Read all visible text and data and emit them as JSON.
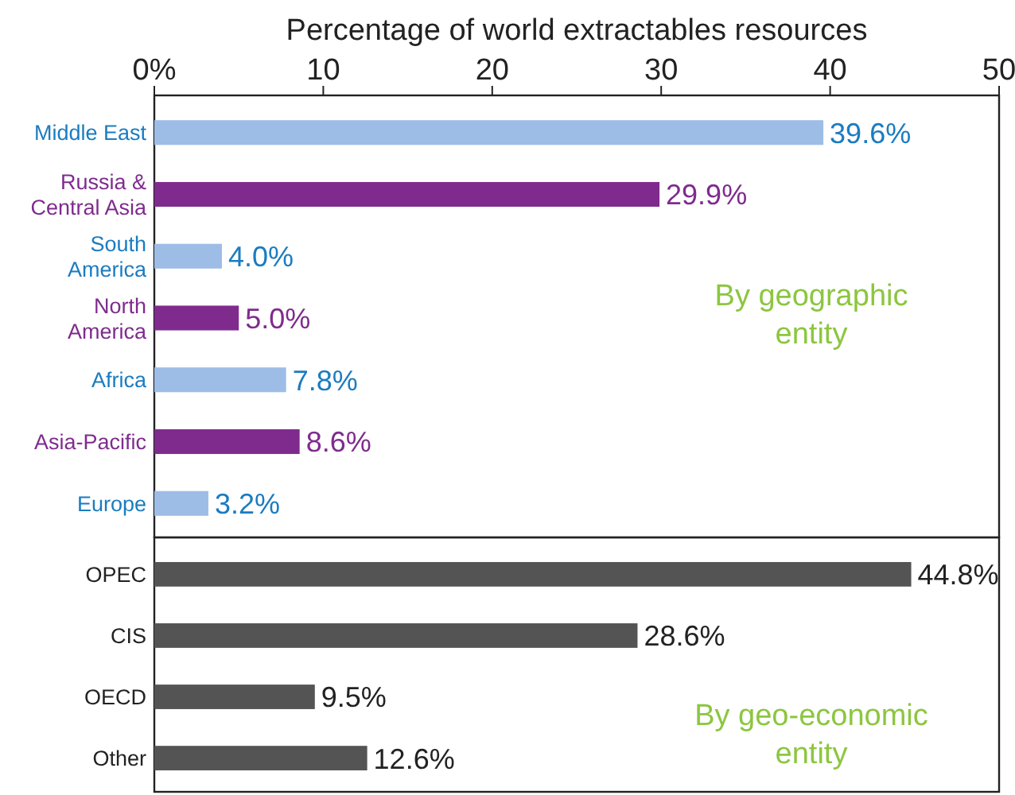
{
  "chart_data": [
    {
      "type": "bar",
      "orientation": "horizontal",
      "xlabel": "Percentage of world extractables resources",
      "categories": [
        "Middle East",
        "Russia & Central Asia",
        "South America",
        "North America",
        "Africa",
        "Asia-Pacific",
        "Europe"
      ],
      "values": [
        39.6,
        29.9,
        4.0,
        5.0,
        7.8,
        8.6,
        3.2
      ],
      "colors": [
        "#9dbde6",
        "#7f2b8e",
        "#9dbde6",
        "#7f2b8e",
        "#9dbde6",
        "#7f2b8e",
        "#9dbde6"
      ],
      "value_labels": [
        "39.6%",
        "29.9%",
        "4.0%",
        "5.0%",
        "7.8%",
        "8.6%",
        "3.2%"
      ],
      "xlim": [
        0,
        50
      ],
      "xticks": [
        {
          "value": 0,
          "label": "0%"
        },
        10,
        20,
        30,
        40,
        50
      ],
      "annotations": [
        "By geographic entity"
      ]
    },
    {
      "type": "bar",
      "orientation": "horizontal",
      "categories": [
        "OPEC",
        "CIS",
        "OECD",
        "Other"
      ],
      "values": [
        44.8,
        28.6,
        9.5,
        12.6
      ],
      "colors": [
        "#545454",
        "#545454",
        "#545454",
        "#545454"
      ],
      "value_labels": [
        "44.8%",
        "28.6%",
        "9.5%",
        "12.6%"
      ],
      "xlim": [
        0,
        50
      ],
      "tick_labels": "y",
      "annotations": [
        "By geo-economic entity"
      ]
    }
  ]
}
